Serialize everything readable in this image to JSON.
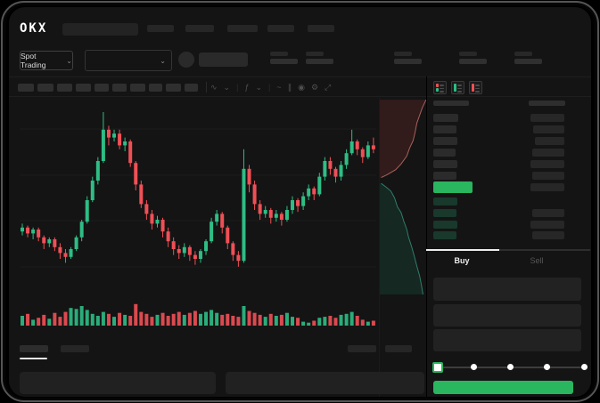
{
  "header": {
    "logo_text": "OKX",
    "nav_pills": [
      30,
      32,
      34,
      30,
      30
    ]
  },
  "subheader": {
    "market_selector_label": "Spot Trading",
    "chevron_glyph": "⌄",
    "stat_groups": [
      293,
      333,
      432,
      505,
      567
    ]
  },
  "toolbar": {
    "timeframe_pills": [
      18,
      18,
      17,
      17,
      16,
      16,
      17,
      15,
      17,
      15
    ],
    "icons": [
      {
        "name": "candle-style-icon",
        "glyph": "∿"
      },
      {
        "name": "chevron-down-icon",
        "glyph": "⌄"
      },
      {
        "name": "divider",
        "glyph": "|"
      },
      {
        "name": "indicator-icon",
        "glyph": "ƒ"
      },
      {
        "name": "chevron-down-icon",
        "glyph": "⌄"
      },
      {
        "name": "divider",
        "glyph": "|"
      },
      {
        "name": "line-tool-icon",
        "glyph": "~"
      },
      {
        "name": "measure-icon",
        "glyph": "∥"
      },
      {
        "name": "camera-icon",
        "glyph": "◉"
      },
      {
        "name": "settings-gear-icon",
        "glyph": "⚙"
      },
      {
        "name": "fullscreen-icon",
        "glyph": "⤢"
      }
    ]
  },
  "colors": {
    "up": "#2ebd85",
    "down": "#ef5056",
    "accent_green": "#2ab55f",
    "bid_row": "rgba(46,189,133,0.22)",
    "ask_fill": "rgba(130,48,48,0.28)",
    "ask_line": "#a8625c",
    "bid_fill": "rgba(25,85,62,0.32)",
    "bid_line": "#2f7d6c"
  },
  "chart_data": {
    "type": "candlestick",
    "title": "",
    "x": "time (skeleton UI - no axis labels visible)",
    "candles_ochl": [
      [
        36,
        38,
        40,
        34
      ],
      [
        38,
        35,
        39,
        33
      ],
      [
        35,
        37,
        38,
        32
      ],
      [
        37,
        33,
        38,
        31
      ],
      [
        33,
        30,
        34,
        27
      ],
      [
        30,
        32,
        33,
        28
      ],
      [
        32,
        28,
        33,
        26
      ],
      [
        28,
        25,
        30,
        22
      ],
      [
        25,
        23,
        27,
        20
      ],
      [
        23,
        27,
        28,
        22
      ],
      [
        27,
        33,
        34,
        26
      ],
      [
        33,
        41,
        42,
        31
      ],
      [
        41,
        52,
        54,
        40
      ],
      [
        52,
        62,
        64,
        51
      ],
      [
        62,
        72,
        74,
        60
      ],
      [
        72,
        88,
        97,
        71
      ],
      [
        88,
        84,
        90,
        80
      ],
      [
        84,
        86,
        88,
        82
      ],
      [
        86,
        80,
        88,
        78
      ],
      [
        80,
        82,
        84,
        77
      ],
      [
        82,
        71,
        83,
        69
      ],
      [
        71,
        60,
        72,
        57
      ],
      [
        60,
        50,
        62,
        48
      ],
      [
        50,
        45,
        52,
        42
      ],
      [
        45,
        40,
        47,
        37
      ],
      [
        40,
        42,
        44,
        38
      ],
      [
        42,
        36,
        43,
        33
      ],
      [
        36,
        31,
        38,
        28
      ],
      [
        31,
        27,
        33,
        24
      ],
      [
        27,
        25,
        29,
        22
      ],
      [
        25,
        28,
        30,
        23
      ],
      [
        28,
        24,
        29,
        21
      ],
      [
        24,
        22,
        26,
        19
      ],
      [
        22,
        26,
        27,
        20
      ],
      [
        26,
        31,
        32,
        24
      ],
      [
        31,
        41,
        43,
        30
      ],
      [
        41,
        45,
        47,
        39
      ],
      [
        45,
        38,
        46,
        35
      ],
      [
        38,
        30,
        39,
        27
      ],
      [
        30,
        24,
        31,
        21
      ],
      [
        24,
        21,
        26,
        18
      ],
      [
        21,
        68,
        78,
        20
      ],
      [
        68,
        60,
        70,
        56
      ],
      [
        60,
        50,
        62,
        47
      ],
      [
        50,
        45,
        52,
        42
      ],
      [
        45,
        47,
        49,
        43
      ],
      [
        47,
        43,
        48,
        40
      ],
      [
        43,
        45,
        47,
        41
      ],
      [
        45,
        42,
        46,
        39
      ],
      [
        42,
        47,
        49,
        41
      ],
      [
        47,
        52,
        54,
        45
      ],
      [
        52,
        49,
        53,
        46
      ],
      [
        49,
        54,
        56,
        47
      ],
      [
        54,
        58,
        60,
        52
      ],
      [
        58,
        55,
        59,
        52
      ],
      [
        55,
        64,
        66,
        54
      ],
      [
        64,
        72,
        74,
        62
      ],
      [
        72,
        68,
        74,
        65
      ],
      [
        68,
        64,
        69,
        61
      ],
      [
        64,
        70,
        72,
        62
      ],
      [
        70,
        76,
        78,
        68
      ],
      [
        76,
        82,
        88,
        75
      ],
      [
        82,
        78,
        83,
        75
      ],
      [
        78,
        74,
        79,
        71
      ],
      [
        74,
        80,
        82,
        73
      ],
      [
        80,
        78,
        84,
        76
      ]
    ],
    "volumes": [
      10,
      12,
      6,
      8,
      11,
      7,
      13,
      9,
      14,
      18,
      17,
      20,
      16,
      12,
      10,
      14,
      12,
      9,
      13,
      11,
      10,
      22,
      14,
      12,
      9,
      11,
      13,
      10,
      12,
      14,
      11,
      13,
      15,
      12,
      14,
      16,
      13,
      11,
      12,
      10,
      9,
      20,
      15,
      13,
      11,
      9,
      12,
      10,
      11,
      13,
      9,
      8,
      4,
      3,
      5,
      8,
      9,
      10,
      8,
      11,
      12,
      14,
      10,
      6,
      4,
      5
    ],
    "gridlines_y_svg": [
      30,
      82,
      133,
      185
    ]
  },
  "depth_chart": {
    "asks_line": [
      [
        1,
        0
      ],
      [
        0.92,
        0.04
      ],
      [
        0.86,
        0.08
      ],
      [
        0.8,
        0.12
      ],
      [
        0.76,
        0.17
      ],
      [
        0.72,
        0.21
      ],
      [
        0.64,
        0.25
      ],
      [
        0.58,
        0.29
      ],
      [
        0.46,
        0.33
      ],
      [
        0.34,
        0.36
      ],
      [
        0.16,
        0.385
      ],
      [
        0.03,
        0.4
      ]
    ],
    "bids_line": [
      [
        0.03,
        0.43
      ],
      [
        0.14,
        0.45
      ],
      [
        0.24,
        0.47
      ],
      [
        0.32,
        0.505
      ],
      [
        0.38,
        0.55
      ],
      [
        0.46,
        0.58
      ],
      [
        0.52,
        0.625
      ],
      [
        0.58,
        0.665
      ],
      [
        0.62,
        0.705
      ],
      [
        0.68,
        0.75
      ],
      [
        0.74,
        0.8
      ],
      [
        0.8,
        0.855
      ],
      [
        0.86,
        0.905
      ],
      [
        0.9,
        0.955
      ],
      [
        0.93,
        1.0
      ]
    ]
  },
  "orderbook": {
    "view_icons": [
      "orderbook-both-icon",
      "orderbook-bids-icon",
      "orderbook-asks-icon"
    ],
    "header_left_w": 40,
    "header_right_w": 41,
    "ask_rows": [
      {
        "l": 28,
        "r": 38
      },
      {
        "l": 26,
        "r": 35
      },
      {
        "l": 27,
        "r": 33
      },
      {
        "l": 25,
        "r": 36
      },
      {
        "l": 27,
        "r": 38
      },
      {
        "l": 26,
        "r": 36
      }
    ],
    "price_pill_w": 44,
    "row_at_pill_r": 38,
    "bid_rows": [
      {
        "l": 27,
        "r": 0
      },
      {
        "l": 26,
        "r": 36
      },
      {
        "l": 27,
        "r": 38
      },
      {
        "l": 26,
        "r": 36
      }
    ]
  },
  "trade_form": {
    "buy_tab_label": "Buy",
    "sell_tab_label": "Sell",
    "input_rows_y": [
      304,
      334,
      362
    ],
    "slider_stops": [
      0,
      0.25,
      0.5,
      0.75,
      1
    ]
  },
  "bottom": {
    "left_tab_pills": [
      32,
      32
    ],
    "right_tab_pills": [
      32,
      30
    ]
  }
}
